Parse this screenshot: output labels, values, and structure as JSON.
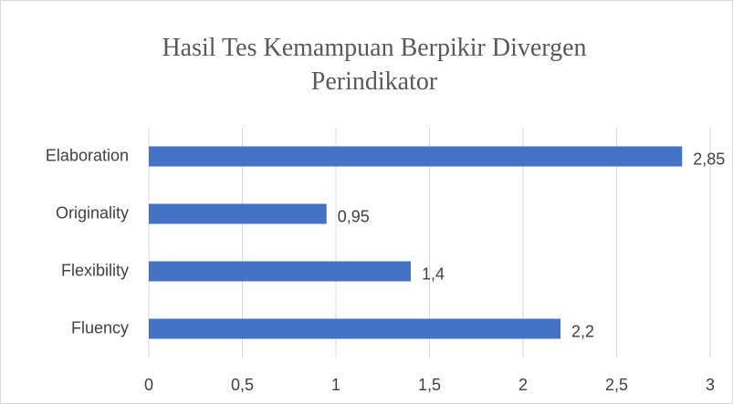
{
  "chart_data": {
    "type": "bar",
    "orientation": "horizontal",
    "title": "Hasil Tes Kemampuan Berpikir Divergen Perindikator",
    "categories": [
      "Fluency",
      "Flexibility",
      "Originality",
      "Elaboration"
    ],
    "values": [
      2.2,
      1.4,
      0.95,
      2.85
    ],
    "value_labels": [
      "2,2",
      "1,4",
      "0,95",
      "2,85"
    ],
    "color": "#4472c4",
    "xlim": [
      0,
      3
    ],
    "xticks": [
      0,
      {
        "value": 0.5,
        "label": "0,5"
      },
      1,
      {
        "value": 1.5,
        "label": "1,5"
      },
      2,
      {
        "value": 2.5,
        "label": "2,5"
      },
      3
    ],
    "grid": true
  }
}
